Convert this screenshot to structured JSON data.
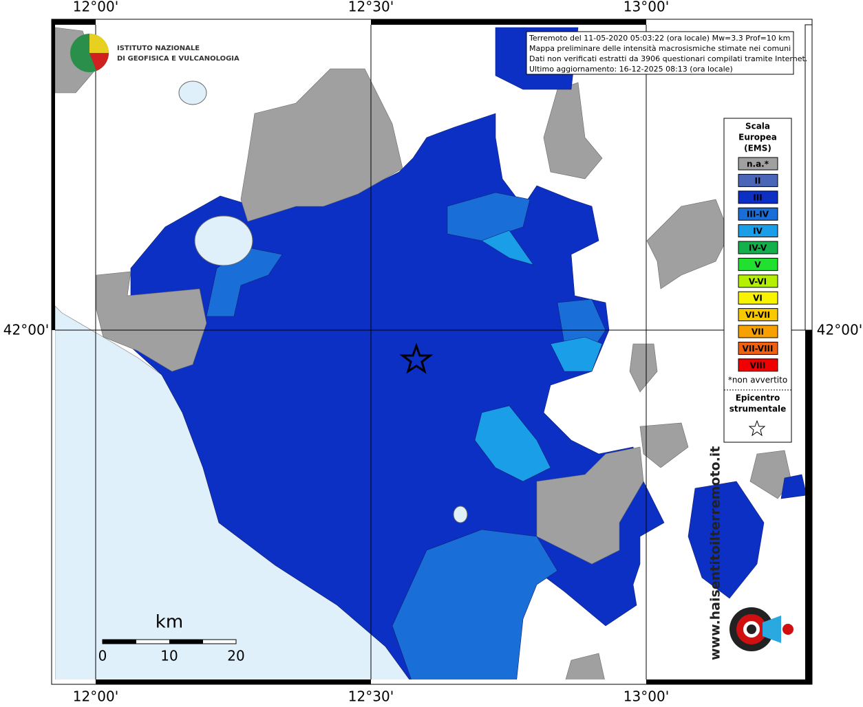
{
  "map": {
    "lon_labels": [
      "12°00'",
      "12°30'",
      "13°00'"
    ],
    "lat_labels": [
      "42°00'"
    ],
    "info": [
      "Terremoto del 11-05-2020 05:03:22 (ora locale) Mw=3.3 Prof=10 km",
      "Mappa preliminare delle intensità macrosismiche stimate nei comuni",
      "Dati non verificati estratti da 3906 questionari compilati tramite Internet.",
      "Ultimo aggiornamento: 16-12-2025 08:13 (ora locale)"
    ],
    "logo": [
      "ISTITUTO NAZIONALE",
      "DI GEOFISICA E VULCANOLOGIA"
    ],
    "legend": {
      "title": [
        "Scala",
        "Europea",
        "(EMS)"
      ],
      "items": [
        {
          "label": "n.a.*",
          "color": "#a0a0a0"
        },
        {
          "label": "II",
          "color": "#4a66b8"
        },
        {
          "label": "III",
          "color": "#0c2fc4"
        },
        {
          "label": "III-IV",
          "color": "#1a6ed8"
        },
        {
          "label": "IV",
          "color": "#1a9ee8"
        },
        {
          "label": "IV-V",
          "color": "#14b04c"
        },
        {
          "label": "V",
          "color": "#22e030"
        },
        {
          "label": "V-VI",
          "color": "#b4f000"
        },
        {
          "label": "VI",
          "color": "#f8f400"
        },
        {
          "label": "VI-VII",
          "color": "#f8c800"
        },
        {
          "label": "VII",
          "color": "#f8a000"
        },
        {
          "label": "VII-VIII",
          "color": "#f06010"
        },
        {
          "label": "VIII",
          "color": "#f00000"
        }
      ],
      "note": "*non avvertito",
      "epicenter": [
        "Epicentro",
        "strumentale"
      ]
    },
    "scale_bar": {
      "unit": "km",
      "ticks": [
        0,
        10,
        20
      ]
    },
    "watermark": "www.haisentitoilterremoto.it"
  }
}
